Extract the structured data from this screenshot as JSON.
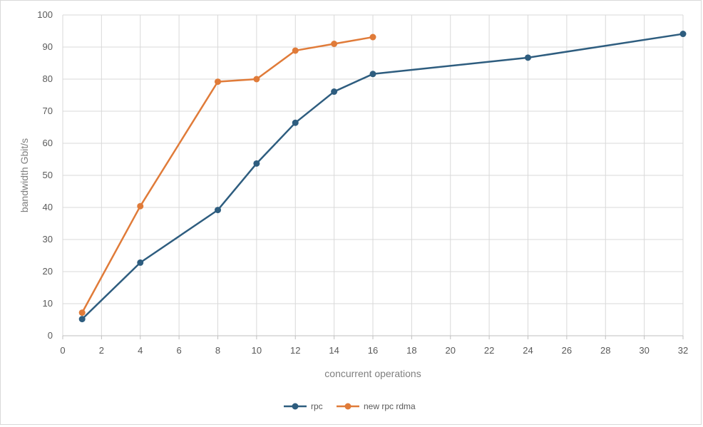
{
  "chart_data": {
    "type": "line",
    "title": "",
    "xlabel": "concurrent operations",
    "ylabel": "bandwidth Gbit/s",
    "xlim": [
      0,
      32
    ],
    "ylim": [
      0,
      100
    ],
    "x_ticks": [
      0,
      2,
      4,
      6,
      8,
      10,
      12,
      14,
      16,
      18,
      20,
      22,
      24,
      26,
      28,
      30,
      32
    ],
    "y_ticks": [
      0,
      10,
      20,
      30,
      40,
      50,
      60,
      70,
      80,
      90,
      100
    ],
    "grid": true,
    "legend_position": "bottom",
    "series": [
      {
        "name": "rpc",
        "color": "#2e5d7f",
        "x": [
          1,
          4,
          8,
          10,
          12,
          14,
          16,
          24,
          32
        ],
        "y": [
          5.2,
          22.8,
          39.2,
          53.7,
          66.4,
          76.1,
          81.6,
          86.7,
          94.1
        ]
      },
      {
        "name": "new rpc rdma",
        "color": "#e07b39",
        "x": [
          1,
          4,
          8,
          10,
          12,
          14,
          16
        ],
        "y": [
          7.2,
          40.4,
          79.2,
          80.0,
          88.9,
          91.0,
          93.1
        ]
      }
    ]
  }
}
